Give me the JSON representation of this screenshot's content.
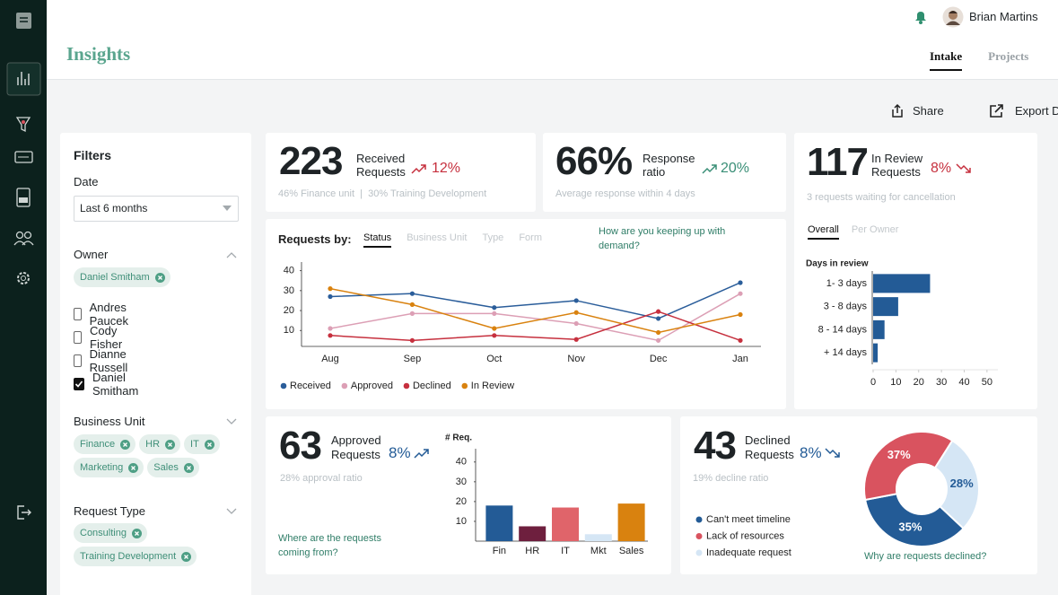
{
  "header": {
    "user": "Brian Martins"
  },
  "page": {
    "title": "Insights",
    "tabs": [
      {
        "label": "Intake",
        "active": true
      },
      {
        "label": "Projects",
        "active": false
      }
    ],
    "actions": [
      "Share",
      "Export Data"
    ]
  },
  "filters": {
    "title": "Filters",
    "date": {
      "label": "Date",
      "selected": "Last 6 months"
    },
    "owner": {
      "label": "Owner",
      "chips": [
        "Daniel Smitham"
      ],
      "options": [
        {
          "label": "Andres Paucek",
          "checked": false
        },
        {
          "label": "Cody Fisher",
          "checked": false
        },
        {
          "label": "Dianne Russell",
          "checked": false
        },
        {
          "label": "Daniel Smitham",
          "checked": true
        }
      ]
    },
    "business_unit": {
      "label": "Business Unit",
      "chips": [
        "Finance",
        "HR",
        "IT",
        "Marketing",
        "Sales"
      ]
    },
    "request_type": {
      "label": "Request Type",
      "chips": [
        "Consulting",
        "Training Development"
      ]
    }
  },
  "kpis": [
    {
      "value": "223",
      "label": [
        "Received",
        "Requests"
      ],
      "change": "12%",
      "trend": "up",
      "color": "#c6303e",
      "note": "46% Finance unit  |  30% Training Development"
    },
    {
      "value": "66%",
      "label": [
        "Response",
        "ratio"
      ],
      "change": "20%",
      "trend": "up",
      "color": "#3a8f77",
      "note": "Average response within 4 days"
    },
    {
      "value": "117",
      "label": [
        "In Review",
        "Requests"
      ],
      "change": "8%",
      "trend": "down",
      "color": "#c6303e",
      "note": "3 requests waiting for cancellation"
    },
    {
      "value": "63",
      "label": [
        "Approved",
        "Requests"
      ],
      "change": "8%",
      "trend": "up",
      "color": "#235b96",
      "note": "28% approval ratio",
      "link": "Where are the requests coming from?"
    },
    {
      "value": "43",
      "label": [
        "Declined",
        "Requests"
      ],
      "change": "8%",
      "trend": "down",
      "color": "#235b96",
      "note": "19% decline ratio",
      "link": "Why are requests declined?"
    }
  ],
  "requests_chart": {
    "type": "line",
    "title": "Requests by:",
    "tabs": [
      {
        "label": "Status",
        "active": true
      },
      {
        "label": "Business Unit",
        "active": false
      },
      {
        "label": "Type",
        "active": false
      },
      {
        "label": "Form",
        "active": false
      }
    ],
    "question": "How are you keeping up with demand?",
    "categories": [
      "Aug",
      "Sep",
      "Oct",
      "Nov",
      "Dec",
      "Jan"
    ],
    "ylim": [
      2,
      43
    ],
    "yticks": [
      10,
      20,
      30,
      40
    ],
    "series": [
      {
        "name": "Received",
        "color": "#2a5d9a",
        "values": [
          27,
          28.5,
          21.5,
          25,
          16,
          34
        ]
      },
      {
        "name": "Approved",
        "color": "#dc9fb5",
        "values": [
          11,
          18.5,
          18.5,
          13.5,
          5,
          28.5
        ]
      },
      {
        "name": "Declined",
        "color": "#c6303e",
        "values": [
          7.5,
          5,
          7.5,
          5.5,
          19.5,
          5
        ]
      },
      {
        "name": "In Review",
        "color": "#d9820f",
        "values": [
          31,
          23,
          11,
          19,
          9,
          18
        ]
      }
    ]
  },
  "review_chart": {
    "type": "hbar",
    "tabs": [
      {
        "label": "Overall",
        "active": true
      },
      {
        "label": "Per Owner",
        "active": false
      }
    ],
    "ylabel": "Days in review",
    "categories": [
      "1- 3 days",
      "3 - 8 days",
      "8 - 14 days",
      "+ 14 days"
    ],
    "values": [
      25,
      11,
      5,
      2
    ],
    "color": "#235b96",
    "xlim": [
      0,
      54
    ],
    "xticks": [
      0,
      10,
      20,
      30,
      40,
      50
    ]
  },
  "approved_chart": {
    "type": "bar",
    "ylabel": "# Req.",
    "categories": [
      "Fin",
      "HR",
      "IT",
      "Mkt",
      "Sales"
    ],
    "values": [
      18,
      7.5,
      17,
      3.5,
      19
    ],
    "colors": [
      "#235b96",
      "#6e1f3e",
      "#e0646a",
      "#d5e6f5",
      "#d9820f"
    ],
    "ylim": [
      0,
      44
    ],
    "yticks": [
      10,
      20,
      30,
      40
    ]
  },
  "declined_chart": {
    "type": "donut",
    "categories": [
      "Can't meet timeline",
      "Lack of resources",
      "Inadequate request"
    ],
    "values": [
      35,
      37,
      28
    ],
    "value_labels": [
      "35%",
      "37%",
      "28%"
    ],
    "colors": [
      "#235b96",
      "#d9535f",
      "#d5e6f5"
    ]
  }
}
